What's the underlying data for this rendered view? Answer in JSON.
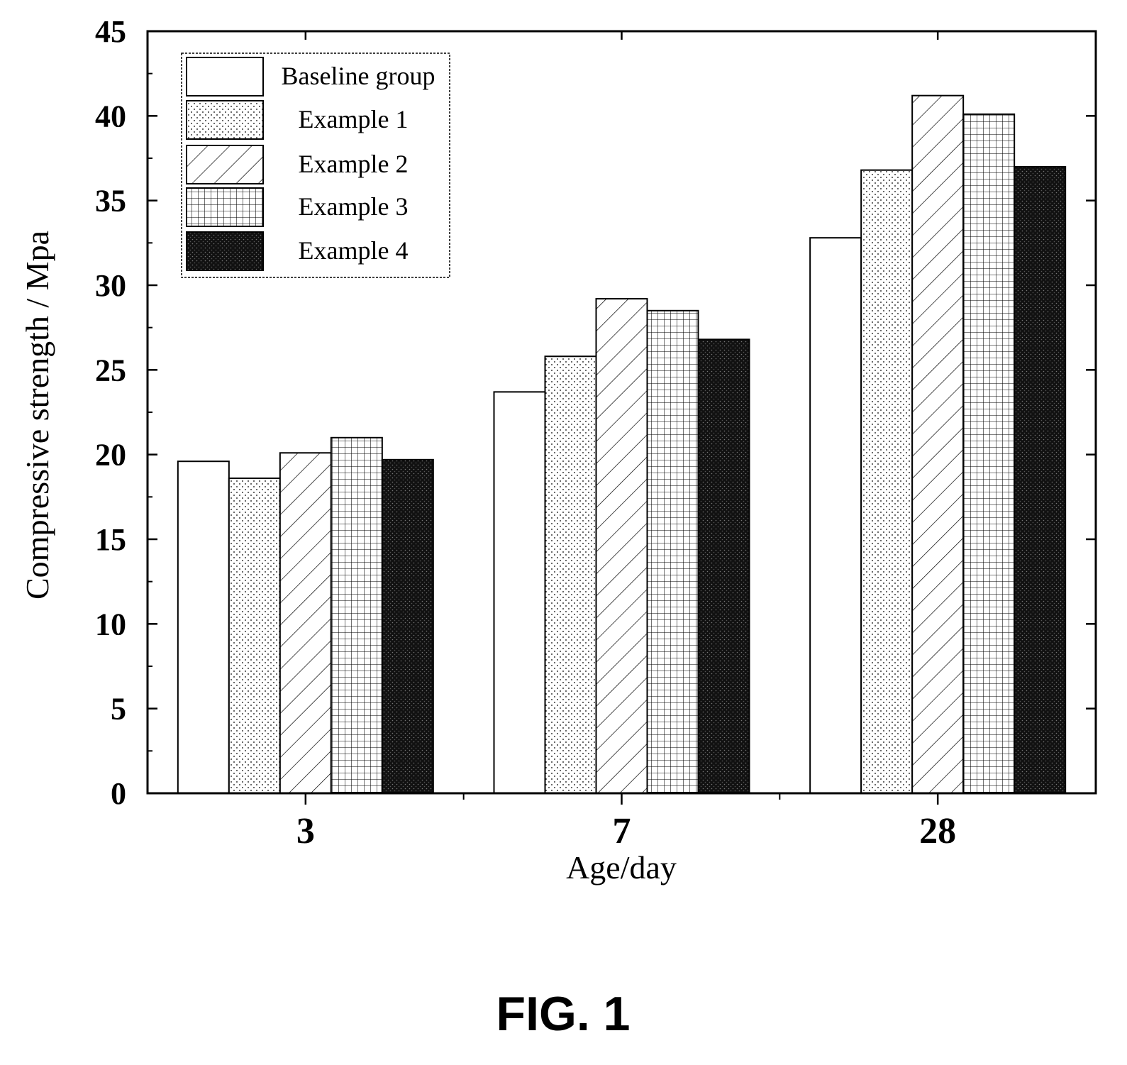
{
  "chart_data": {
    "type": "bar",
    "categories": [
      "3",
      "7",
      "28"
    ],
    "series": [
      {
        "name": "Baseline group",
        "values": [
          19.6,
          23.7,
          32.8
        ],
        "pattern": "none"
      },
      {
        "name": "Example 1",
        "values": [
          18.6,
          25.8,
          36.8
        ],
        "pattern": "dots"
      },
      {
        "name": "Example 2",
        "values": [
          20.1,
          29.2,
          41.2
        ],
        "pattern": "diagonal"
      },
      {
        "name": "Example 3",
        "values": [
          21.0,
          28.5,
          40.1
        ],
        "pattern": "grid"
      },
      {
        "name": "Example 4",
        "values": [
          19.7,
          26.8,
          37.0
        ],
        "pattern": "dark"
      }
    ],
    "title": "",
    "xlabel": "Age/day",
    "ylabel": "Compressive strength / Mpa",
    "ylim": [
      0,
      45
    ],
    "yticks": [
      0,
      5,
      10,
      15,
      20,
      25,
      30,
      35,
      40,
      45
    ],
    "grid": false,
    "legend_position": "top-left"
  },
  "figure_label": "FIG. 1",
  "colors": {
    "ink": "#000000",
    "background": "#ffffff"
  }
}
